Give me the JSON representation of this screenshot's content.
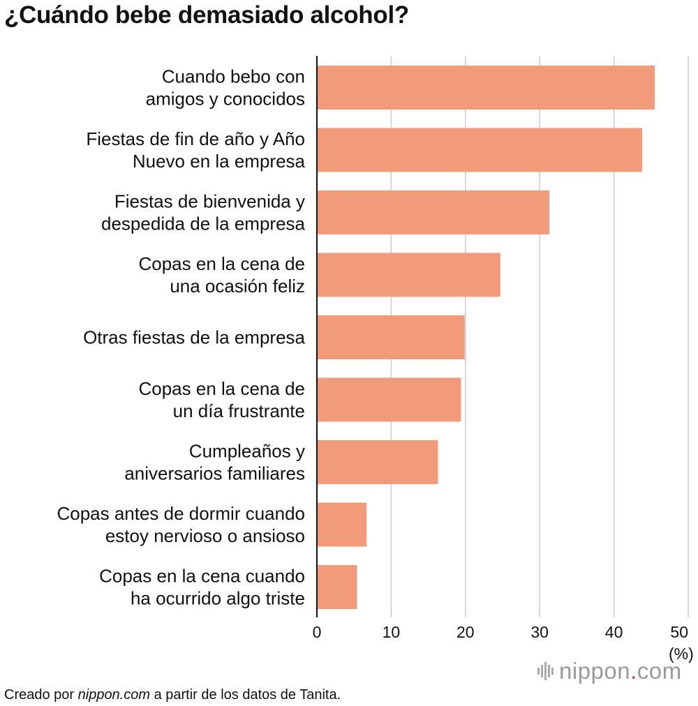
{
  "header": {
    "title": "¿Cuándo bebe demasiado alcohol?"
  },
  "footer": {
    "credit_prefix": "Creado por ",
    "credit_site": "nippon.com",
    "credit_suffix": " a partir de los datos de Tanita.",
    "logo_left": "nippon",
    "logo_dot": ".",
    "logo_right": "com"
  },
  "colors": {
    "bar": "#f29b7b",
    "grid": "#cccccc",
    "axis": "#111111"
  },
  "icons": {
    "logo": "nippon-logo-icon"
  },
  "chart_data": {
    "type": "bar",
    "orientation": "horizontal",
    "title": "¿Cuándo bebe demasiado alcohol?",
    "categories": [
      [
        "Cuando bebo con",
        "amigos y conocidos"
      ],
      [
        "Fiestas de fin de año y Año",
        "Nuevo en la empresa"
      ],
      [
        "Fiestas de bienvenida y",
        "despedida de la empresa"
      ],
      [
        "Copas en la cena de",
        "una ocasión feliz"
      ],
      [
        "Otras fiestas de la empresa"
      ],
      [
        "Copas en la cena de",
        "un día frustrante"
      ],
      [
        "Cumpleaños y",
        "aniversarios familiares"
      ],
      [
        "Copas antes de dormir cuando",
        "estoy nervioso o ansioso"
      ],
      [
        "Copas en la cena cuando",
        "ha ocurrido algo triste"
      ]
    ],
    "values": [
      45.5,
      43.8,
      31.3,
      24.7,
      19.9,
      19.4,
      16.3,
      6.7,
      5.4
    ],
    "xlim": [
      0,
      50
    ],
    "xticks": [
      "0",
      "10",
      "20",
      "30",
      "40",
      "50"
    ],
    "xunit": "(%)",
    "grid": true
  }
}
